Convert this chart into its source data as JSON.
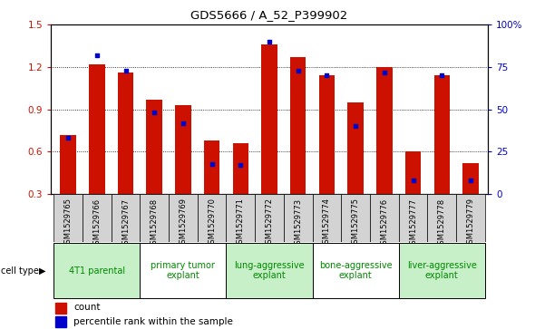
{
  "title": "GDS5666 / A_52_P399902",
  "samples": [
    "GSM1529765",
    "GSM1529766",
    "GSM1529767",
    "GSM1529768",
    "GSM1529769",
    "GSM1529770",
    "GSM1529771",
    "GSM1529772",
    "GSM1529773",
    "GSM1529774",
    "GSM1529775",
    "GSM1529776",
    "GSM1529777",
    "GSM1529778",
    "GSM1529779"
  ],
  "count_values": [
    0.72,
    1.22,
    1.16,
    0.97,
    0.93,
    0.68,
    0.66,
    1.36,
    1.27,
    1.14,
    0.95,
    1.2,
    0.6,
    1.14,
    0.52
  ],
  "percentile_values": [
    33,
    82,
    73,
    48,
    42,
    18,
    17,
    90,
    73,
    70,
    40,
    72,
    8,
    70,
    8
  ],
  "ylim_left": [
    0.3,
    1.5
  ],
  "ylim_right": [
    0,
    100
  ],
  "yticks_left": [
    0.3,
    0.6,
    0.9,
    1.2,
    1.5
  ],
  "yticks_right": [
    0,
    25,
    50,
    75,
    100
  ],
  "cell_types": [
    {
      "label": "4T1 parental",
      "start": 0,
      "end": 3,
      "color": "#c8f0c8"
    },
    {
      "label": "primary tumor\nexplant",
      "start": 3,
      "end": 6,
      "color": "#ffffff"
    },
    {
      "label": "lung-aggressive\nexplant",
      "start": 6,
      "end": 9,
      "color": "#c8f0c8"
    },
    {
      "label": "bone-aggressive\nexplant",
      "start": 9,
      "end": 12,
      "color": "#ffffff"
    },
    {
      "label": "liver-aggressive\nexplant",
      "start": 12,
      "end": 15,
      "color": "#c8f0c8"
    }
  ],
  "bar_color": "#cc1100",
  "percentile_color": "#0000cc",
  "sample_bg_color": "#d3d3d3",
  "plot_bg": "#ffffff",
  "ylabel_left_color": "#cc1100",
  "ylabel_right_color": "#0000cc",
  "cell_type_text_color": "#008800"
}
